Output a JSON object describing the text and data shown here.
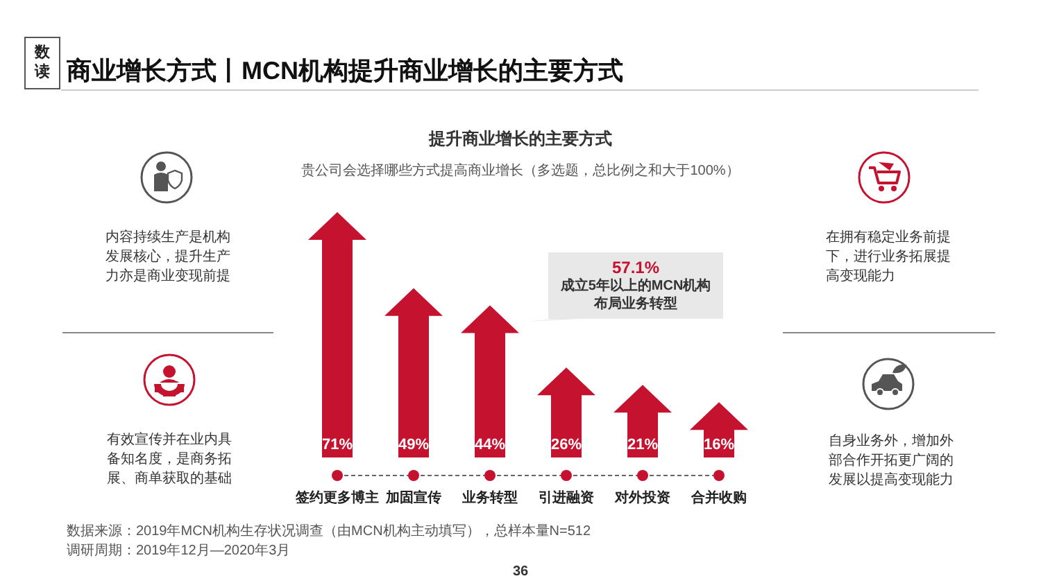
{
  "chart_data": {
    "type": "bar",
    "title": "商业增长方式丨MCN机构提升商业增长的主要方式",
    "subtitle": "提升商业增长的主要方式",
    "categories": [
      "签约更多博主",
      "加固宣传",
      "业务转型",
      "引进融资",
      "对外投资",
      "合并收购"
    ],
    "values": [
      71,
      49,
      44,
      26,
      21,
      16
    ],
    "value_labels": [
      "71%",
      "49%",
      "44%",
      "26%",
      "21%",
      "16%"
    ],
    "color": "#c4122f",
    "annotations": [
      "数读",
      "贵公司会选择哪些方式提高商业增长（多选题，总比例之和大于100%）",
      "内容持续生产是机构发展核心，提升生产力亦是商业变现前提",
      "有效宣传并在业内具备知名度，是商务拓展、商单获取的基础",
      "在拥有稳定业务前提下，进行业务拓展提高变现能力",
      "自身业务外，增加外部合作开拓更广阔的发展以提高变现能力",
      "57.1%",
      "成立5年以上的MCN机构布局业务转型",
      "数据来源：2019年MCN机构生存状况调查（由MCN机构主动填写），总样本量N=512",
      "调研周期：2019年12月—2020年3月",
      "36"
    ]
  }
}
